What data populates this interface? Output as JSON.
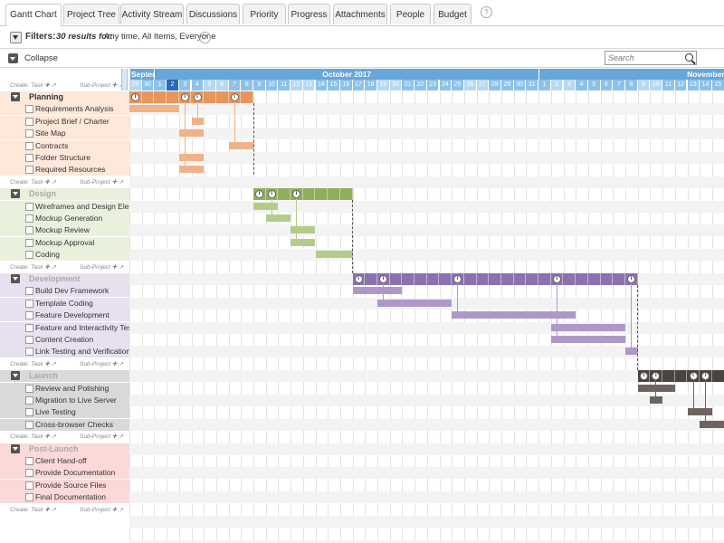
{
  "tabs": [
    {
      "label": "Gantt Chart",
      "active": true
    },
    {
      "label": "Project Tree"
    },
    {
      "label": "Activity Stream"
    },
    {
      "label": "Discussions"
    },
    {
      "label": "Priority"
    },
    {
      "label": "Progress"
    },
    {
      "label": "Attachments"
    },
    {
      "label": "People"
    },
    {
      "label": "Budget"
    }
  ],
  "help_glyph": "?",
  "filters": {
    "label": "Filters:",
    "results": "30 results for:",
    "criteria": "Any time, All Items, Everyone"
  },
  "toolbar": {
    "collapse_label": "Collapse",
    "search_placeholder": "Search"
  },
  "create": {
    "task": "Create: Task ✚ ➚",
    "subproject": "Sub-Project ✚ ➚"
  },
  "timeline": {
    "months": [
      {
        "label": "Septem"
      },
      {
        "label": "October 2017"
      },
      {
        "label": "November"
      }
    ],
    "days": [
      "29",
      "30",
      "1",
      "2",
      "3",
      "4",
      "5",
      "6",
      "7",
      "8",
      "9",
      "10",
      "11",
      "12",
      "13",
      "14",
      "15",
      "16",
      "17",
      "18",
      "19",
      "20",
      "21",
      "22",
      "23",
      "24",
      "25",
      "26",
      "27",
      "28",
      "29",
      "30",
      "31",
      "1",
      "2",
      "3",
      "4",
      "5",
      "6",
      "7",
      "8",
      "9",
      "10",
      "11",
      "12",
      "13",
      "14",
      "15"
    ],
    "today_index": 3,
    "weekend_indices": [
      0,
      6,
      7,
      13,
      14,
      20,
      21,
      27,
      28,
      34,
      35,
      41,
      42
    ]
  },
  "groups": [
    {
      "name": "Planning",
      "color": "#e8955b",
      "light": "#f0b287",
      "bg": "#fde8da",
      "name_color": "#333",
      "tasks": [
        {
          "name": "Requirements Analysis",
          "start": 0,
          "dur": 4
        },
        {
          "name": "Project Brief / Charter",
          "start": 5,
          "dur": 1
        },
        {
          "name": "Site Map",
          "start": 4,
          "dur": 2
        },
        {
          "name": "Contracts",
          "start": 8,
          "dur": 2
        },
        {
          "name": "Folder Structure",
          "start": 4,
          "dur": 2
        },
        {
          "name": "Required Resources",
          "start": 4,
          "dur": 2
        }
      ],
      "summary": {
        "start": 0,
        "dur": 10
      },
      "icons": [
        0,
        4,
        5,
        8
      ]
    },
    {
      "name": "Design",
      "color": "#8fae5e",
      "light": "#b4cc8a",
      "bg": "#e9f1dc",
      "name_color": "#aaa",
      "tasks": [
        {
          "name": "Wireframes and Design Elem",
          "start": 10,
          "dur": 2
        },
        {
          "name": "Mockup Generation",
          "start": 11,
          "dur": 2
        },
        {
          "name": "Mockup Review",
          "start": 13,
          "dur": 2
        },
        {
          "name": "Mockup Approval",
          "start": 13,
          "dur": 2
        },
        {
          "name": "Coding",
          "start": 15,
          "dur": 3
        }
      ],
      "summary": {
        "start": 10,
        "dur": 8
      },
      "icons": [
        10,
        11,
        13
      ]
    },
    {
      "name": "Development",
      "color": "#8c71b0",
      "light": "#ad98c9",
      "bg": "#e7e0ef",
      "name_color": "#aaa",
      "tasks": [
        {
          "name": "Build Dev Framework",
          "start": 18,
          "dur": 4
        },
        {
          "name": "Template Coding",
          "start": 20,
          "dur": 6
        },
        {
          "name": "Feature Development",
          "start": 26,
          "dur": 10
        },
        {
          "name": "Feature and Interactivity Testi",
          "start": 34,
          "dur": 6
        },
        {
          "name": "Content Creation",
          "start": 34,
          "dur": 6
        },
        {
          "name": "Link Testing and Verification",
          "start": 40,
          "dur": 1
        }
      ],
      "summary": {
        "start": 18,
        "dur": 23
      },
      "icons": [
        18,
        20,
        26,
        34,
        40
      ]
    },
    {
      "name": "Launch",
      "color": "#4a4340",
      "light": "#6d6461",
      "bg": "#d9d9d9",
      "name_color": "#aaa",
      "tasks": [
        {
          "name": "Review and Polishing",
          "start": 41,
          "dur": 3
        },
        {
          "name": "Migration to Live Server",
          "start": 42,
          "dur": 1
        },
        {
          "name": "Live Testing",
          "start": 45,
          "dur": 2
        },
        {
          "name": "Cross-browser Checks",
          "start": 46,
          "dur": 2
        }
      ],
      "summary": {
        "start": 41,
        "dur": 7
      },
      "icons": [
        41,
        42,
        45,
        46
      ]
    },
    {
      "name": "Post-Launch",
      "color": "#f07b7b",
      "light": "#f7a3a3",
      "bg": "#fbd9d9",
      "name_color": "#aaa",
      "tasks": [
        {
          "name": "Client Hand-off"
        },
        {
          "name": "Provide Documentation"
        },
        {
          "name": "Provide Source Files"
        },
        {
          "name": "Final Documentation"
        }
      ],
      "summary": null,
      "icons": []
    }
  ]
}
